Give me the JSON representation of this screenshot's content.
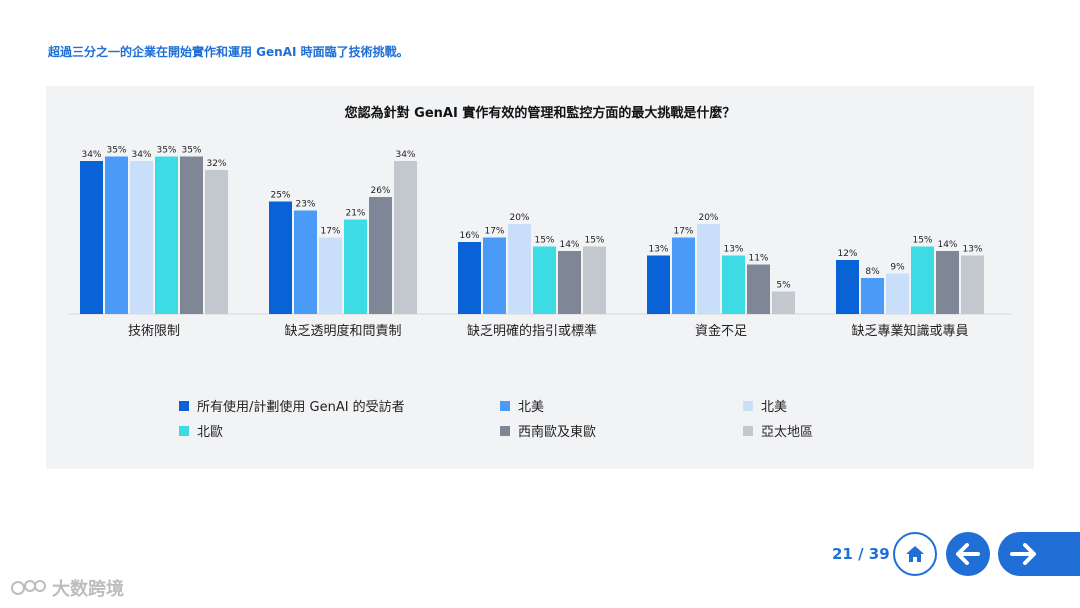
{
  "headline": "超過三分之一的企業在開始實作和運用 GenAI 時面臨了技術挑戰。",
  "chart_data": {
    "type": "bar",
    "title": "您認為針對 GenAI 實作有效的管理和監控方面的最大挑戰是什麼？",
    "categories": [
      "技術限制",
      "缺乏透明度和問責制",
      "缺乏明確的指引或標準",
      "資金不足",
      "缺乏專業知識或專員"
    ],
    "series": [
      {
        "name": "所有使用/計劃使用 GenAI 的受訪者",
        "color": "#0a63d6",
        "values": [
          34,
          25,
          16,
          13,
          12
        ]
      },
      {
        "name": "北美",
        "color": "#4a9bf7",
        "values": [
          35,
          23,
          17,
          17,
          8
        ]
      },
      {
        "name": "北美",
        "color": "#c9def8",
        "values": [
          34,
          17,
          20,
          20,
          9
        ]
      },
      {
        "name": "北歐",
        "color": "#3ddbe3",
        "values": [
          35,
          21,
          15,
          13,
          15
        ]
      },
      {
        "name": "西南歐及東歐",
        "color": "#7f8797",
        "values": [
          35,
          26,
          14,
          11,
          14
        ]
      },
      {
        "name": "亞太地區",
        "color": "#c3c7ce",
        "values": [
          32,
          34,
          15,
          5,
          13
        ]
      }
    ],
    "value_suffix": "%",
    "ylim": [
      0,
      40
    ],
    "grid": false,
    "legend_position": "bottom"
  },
  "page": {
    "label": "21 / 39"
  },
  "nav": {
    "home_icon": "home-icon",
    "back_icon": "arrow-left-icon",
    "next_icon": "arrow-right-icon"
  },
  "watermark": {
    "text": "大数跨境"
  }
}
